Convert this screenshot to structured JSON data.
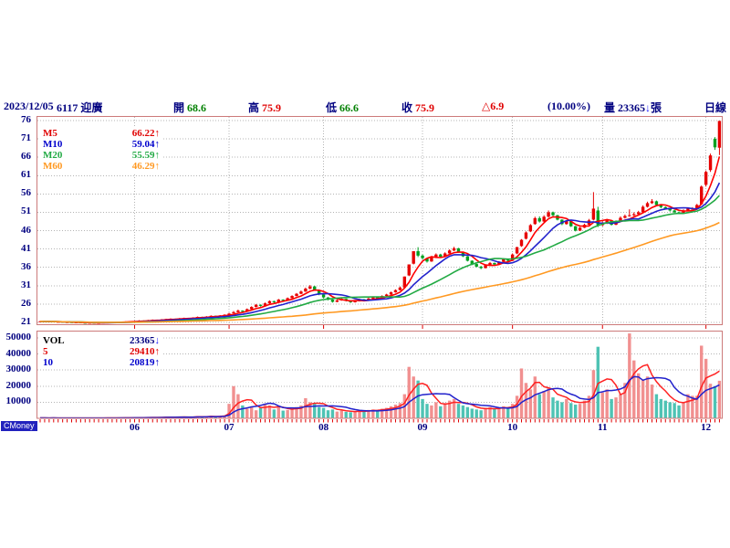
{
  "header": {
    "date": "2023/12/05",
    "stock": "6117 迎廣",
    "open_label": "開",
    "open": "68.6",
    "high_label": "高",
    "high": "75.9",
    "low_label": "低",
    "low": "66.6",
    "close_label": "收",
    "close": "75.9",
    "change": "△6.9",
    "change_pct": "(10.00%)",
    "volume_label": "量",
    "volume": "23365",
    "volume_arrow": "↓",
    "volume_unit": "張",
    "period": "日線"
  },
  "price_panel": {
    "y_ticks": [
      76,
      71,
      66,
      61,
      56,
      51,
      46,
      41,
      36,
      31,
      26,
      21
    ],
    "ma_legend": [
      {
        "label": "M5",
        "value": "66.22",
        "dir": "↑",
        "label_color": "#e00000",
        "value_color": "#e00000",
        "dir_color": "#e00000"
      },
      {
        "label": "M10",
        "value": "59.04",
        "dir": "↑",
        "label_color": "#0000cc",
        "value_color": "#0000cc",
        "dir_color": "#0000cc"
      },
      {
        "label": "M20",
        "value": "55.59",
        "dir": "↑",
        "label_color": "#22aa44",
        "value_color": "#22aa44",
        "dir_color": "#22aa44"
      },
      {
        "label": "M60",
        "value": "46.29",
        "dir": "↑",
        "label_color": "#ff9922",
        "value_color": "#ff9922",
        "dir_color": "#ff9922"
      }
    ]
  },
  "volume_panel": {
    "y_ticks": [
      "50000",
      "40000",
      "30000",
      "20000",
      "10000"
    ],
    "legend": [
      {
        "label": "VOL",
        "value": "23365",
        "dir": "↓",
        "label_color": "#000000",
        "value_color": "#000080",
        "dir_color": "#1a1aff"
      },
      {
        "label": "5",
        "value": "29410",
        "dir": "↑",
        "label_color": "#e00000",
        "value_color": "#e00000",
        "dir_color": "#e00000"
      },
      {
        "label": "10",
        "value": "20819",
        "dir": "↑",
        "label_color": "#0000cc",
        "value_color": "#0000cc",
        "dir_color": "#0000cc"
      }
    ]
  },
  "x_axis": {
    "months": [
      {
        "label": "06",
        "index": 21
      },
      {
        "label": "07",
        "index": 42
      },
      {
        "label": "08",
        "index": 63
      },
      {
        "label": "09",
        "index": 85
      },
      {
        "label": "10",
        "index": 105
      },
      {
        "label": "11",
        "index": 125
      },
      {
        "label": "12",
        "index": 148
      }
    ]
  },
  "watermark": "CMoney",
  "chart_data": {
    "type": "candlestick+volume",
    "title": "6117 迎廣 日線",
    "price_ylim": [
      21,
      76
    ],
    "volume_ylim": [
      0,
      50000
    ],
    "grid_color": "#b4b4b4",
    "border_color": "#cc7a7a",
    "up_color": "#e60000",
    "down_color": "#00a020",
    "vol_up_color": "#f19090",
    "vol_down_color": "#4ec3b4",
    "tick_color": "#e00000",
    "price_ma": [
      {
        "period": 5,
        "color": "#ff0000"
      },
      {
        "period": 10,
        "color": "#2222cc"
      },
      {
        "period": 20,
        "color": "#22aa44"
      },
      {
        "period": 60,
        "color": "#ff9922"
      }
    ],
    "volume_ma": [
      {
        "period": 5,
        "color": "#ff2222"
      },
      {
        "period": 10,
        "color": "#2222cc"
      }
    ],
    "columns": [
      "open",
      "high",
      "low",
      "close",
      "volume"
    ],
    "days": [
      [
        21.25,
        21.4,
        21.2,
        21.3,
        300
      ],
      [
        21.3,
        21.35,
        21.15,
        21.2,
        250
      ],
      [
        21.2,
        21.3,
        21.15,
        21.25,
        200
      ],
      [
        21.25,
        21.3,
        21.05,
        21.1,
        280
      ],
      [
        21.1,
        21.2,
        21.05,
        21.15,
        180
      ],
      [
        21.15,
        21.2,
        20.95,
        21.0,
        320
      ],
      [
        21.0,
        21.1,
        20.95,
        21.05,
        150
      ],
      [
        21.05,
        21.1,
        20.9,
        20.95,
        260
      ],
      [
        20.95,
        21.05,
        20.9,
        21.0,
        190
      ],
      [
        21.0,
        21.05,
        20.85,
        20.9,
        240
      ],
      [
        20.9,
        20.95,
        20.8,
        20.85,
        210
      ],
      [
        20.85,
        20.95,
        20.8,
        20.9,
        230
      ],
      [
        20.9,
        20.95,
        20.75,
        20.8,
        270
      ],
      [
        20.8,
        20.9,
        20.75,
        20.85,
        200
      ],
      [
        20.85,
        21.0,
        20.8,
        20.95,
        310
      ],
      [
        20.95,
        21.05,
        20.9,
        21.0,
        280
      ],
      [
        21.0,
        21.15,
        20.95,
        21.1,
        350
      ],
      [
        21.1,
        21.15,
        21.0,
        21.05,
        220
      ],
      [
        21.05,
        21.2,
        21.0,
        21.15,
        330
      ],
      [
        21.15,
        21.3,
        21.1,
        21.2,
        400
      ],
      [
        21.2,
        21.35,
        21.15,
        21.3,
        380
      ],
      [
        21.3,
        21.45,
        21.25,
        21.35,
        420
      ],
      [
        21.35,
        21.6,
        21.3,
        21.5,
        600
      ],
      [
        21.5,
        21.55,
        21.35,
        21.4,
        380
      ],
      [
        21.4,
        21.7,
        21.35,
        21.6,
        700
      ],
      [
        21.6,
        21.8,
        21.55,
        21.7,
        650
      ],
      [
        21.7,
        21.75,
        21.6,
        21.65,
        400
      ],
      [
        21.65,
        21.9,
        21.6,
        21.8,
        750
      ],
      [
        21.8,
        22.0,
        21.75,
        21.9,
        800
      ],
      [
        21.9,
        22.1,
        21.85,
        22.0,
        900
      ],
      [
        22.0,
        22.05,
        21.8,
        21.9,
        500
      ],
      [
        21.9,
        22.2,
        21.85,
        22.1,
        950
      ],
      [
        22.1,
        22.3,
        22.05,
        22.2,
        1000
      ],
      [
        22.2,
        22.25,
        22.05,
        22.15,
        550
      ],
      [
        22.15,
        22.4,
        22.1,
        22.3,
        1100
      ],
      [
        22.3,
        22.6,
        22.25,
        22.5,
        1400
      ],
      [
        22.5,
        22.55,
        22.3,
        22.4,
        700
      ],
      [
        22.4,
        22.7,
        22.35,
        22.6,
        1300
      ],
      [
        22.6,
        22.9,
        22.55,
        22.8,
        1600
      ],
      [
        22.8,
        22.85,
        22.6,
        22.7,
        800
      ],
      [
        22.7,
        23.0,
        22.65,
        22.9,
        1500
      ],
      [
        22.9,
        23.2,
        22.85,
        23.1,
        1800
      ],
      [
        23.1,
        23.6,
        23.0,
        23.4,
        9000
      ],
      [
        23.5,
        24.1,
        23.4,
        23.8,
        20000
      ],
      [
        23.8,
        24.5,
        23.7,
        24.2,
        15000
      ],
      [
        24.2,
        24.3,
        23.8,
        24.0,
        8000
      ],
      [
        24.0,
        24.8,
        23.9,
        24.6,
        6000
      ],
      [
        24.6,
        25.4,
        24.5,
        25.2,
        7500
      ],
      [
        25.2,
        26.0,
        25.1,
        25.8,
        5000
      ],
      [
        25.8,
        25.9,
        25.3,
        25.5,
        6500
      ],
      [
        25.5,
        26.4,
        25.4,
        26.2,
        9000
      ],
      [
        26.2,
        27.0,
        26.1,
        26.8,
        8000
      ],
      [
        26.8,
        26.9,
        26.3,
        26.5,
        5500
      ],
      [
        26.5,
        27.4,
        26.4,
        27.2,
        7000
      ],
      [
        27.2,
        27.3,
        26.8,
        27.0,
        4800
      ],
      [
        27.0,
        27.8,
        26.9,
        27.6,
        5200
      ],
      [
        27.6,
        28.4,
        27.5,
        28.2,
        6000
      ],
      [
        28.2,
        29.0,
        28.1,
        28.8,
        7000
      ],
      [
        28.8,
        29.7,
        28.7,
        29.4,
        8000
      ],
      [
        29.4,
        30.5,
        29.3,
        30.2,
        12500
      ],
      [
        30.2,
        31.2,
        30.0,
        30.8,
        10000
      ],
      [
        30.8,
        31.0,
        29.6,
        29.8,
        9500
      ],
      [
        29.8,
        30.0,
        28.4,
        28.6,
        7000
      ],
      [
        28.6,
        28.7,
        27.6,
        27.8,
        6500
      ],
      [
        27.8,
        27.9,
        27.0,
        27.2,
        5000
      ],
      [
        27.2,
        27.3,
        26.4,
        26.6,
        5500
      ],
      [
        26.6,
        27.2,
        26.5,
        27.0,
        4200
      ],
      [
        27.0,
        27.6,
        26.9,
        27.4,
        4800
      ],
      [
        27.4,
        27.5,
        26.7,
        26.9,
        4000
      ],
      [
        26.9,
        27.0,
        26.3,
        26.5,
        3800
      ],
      [
        26.5,
        27.0,
        26.4,
        26.8,
        4200
      ],
      [
        26.8,
        27.5,
        26.7,
        27.3,
        5000
      ],
      [
        27.3,
        27.4,
        26.8,
        27.0,
        4500
      ],
      [
        27.0,
        27.7,
        26.9,
        27.5,
        5200
      ],
      [
        27.5,
        28.1,
        27.4,
        27.9,
        5500
      ],
      [
        27.9,
        28.0,
        27.4,
        27.6,
        4800
      ],
      [
        27.6,
        28.4,
        27.5,
        28.2,
        6000
      ],
      [
        28.2,
        28.8,
        28.1,
        28.6,
        6500
      ],
      [
        28.6,
        29.4,
        28.5,
        29.2,
        7500
      ],
      [
        29.2,
        30.0,
        29.1,
        29.8,
        8500
      ],
      [
        29.8,
        30.8,
        29.7,
        30.5,
        9500
      ],
      [
        30.5,
        33.5,
        30.4,
        33.5,
        15000
      ],
      [
        33.8,
        36.8,
        33.6,
        36.8,
        32000
      ],
      [
        37.0,
        40.4,
        36.8,
        40.4,
        26000
      ],
      [
        40.4,
        41.5,
        38.8,
        39.2,
        23500
      ],
      [
        39.2,
        39.5,
        38.2,
        38.5,
        12000
      ],
      [
        38.5,
        38.6,
        37.3,
        37.6,
        9000
      ],
      [
        37.6,
        39.1,
        37.5,
        38.8,
        8000
      ],
      [
        38.8,
        39.8,
        38.6,
        39.5,
        10000
      ],
      [
        39.5,
        39.7,
        38.6,
        38.9,
        7500
      ],
      [
        38.9,
        40.1,
        38.8,
        39.8,
        9500
      ],
      [
        39.8,
        40.9,
        39.7,
        40.6,
        11000
      ],
      [
        40.6,
        41.6,
        40.4,
        41.2,
        12000
      ],
      [
        41.2,
        41.3,
        40.0,
        40.2,
        9000
      ],
      [
        40.2,
        40.3,
        38.8,
        39.0,
        8000
      ],
      [
        39.0,
        39.1,
        37.6,
        37.8,
        7000
      ],
      [
        37.8,
        37.9,
        36.6,
        36.9,
        6000
      ],
      [
        36.9,
        37.0,
        36.0,
        36.2,
        5500
      ],
      [
        36.2,
        36.4,
        35.5,
        35.8,
        5000
      ],
      [
        35.8,
        36.8,
        35.7,
        36.6,
        6500
      ],
      [
        36.6,
        37.5,
        36.5,
        37.2,
        7000
      ],
      [
        37.2,
        37.3,
        36.6,
        36.8,
        5800
      ],
      [
        36.8,
        37.7,
        36.7,
        37.5,
        6200
      ],
      [
        37.5,
        38.5,
        37.4,
        38.2,
        7500
      ],
      [
        38.2,
        38.3,
        37.5,
        37.8,
        6800
      ],
      [
        37.8,
        39.8,
        37.7,
        39.5,
        9000
      ],
      [
        39.8,
        41.6,
        39.6,
        41.5,
        14000
      ],
      [
        41.8,
        43.7,
        41.6,
        43.5,
        31000
      ],
      [
        43.8,
        45.8,
        43.6,
        45.5,
        22000
      ],
      [
        45.8,
        47.8,
        45.6,
        47.5,
        18000
      ],
      [
        47.8,
        49.8,
        47.6,
        49.4,
        26000
      ],
      [
        49.4,
        49.9,
        48.2,
        48.5,
        15000
      ],
      [
        48.5,
        50.2,
        48.3,
        49.8,
        17000
      ],
      [
        49.8,
        51.5,
        49.6,
        51.0,
        19000
      ],
      [
        51.0,
        51.2,
        49.9,
        50.2,
        13000
      ],
      [
        50.2,
        50.3,
        48.8,
        49.0,
        11000
      ],
      [
        49.0,
        49.1,
        47.5,
        47.8,
        10000
      ],
      [
        47.8,
        48.9,
        47.6,
        48.6,
        12000
      ],
      [
        48.6,
        48.7,
        47.0,
        47.2,
        9500
      ],
      [
        47.2,
        47.3,
        45.8,
        46.0,
        8500
      ],
      [
        46.0,
        47.0,
        45.9,
        46.8,
        9000
      ],
      [
        46.8,
        47.9,
        46.7,
        47.6,
        11000
      ],
      [
        47.6,
        49.2,
        47.5,
        48.8,
        14000
      ],
      [
        49.0,
        56.5,
        48.8,
        52.0,
        30000
      ],
      [
        51.5,
        52.5,
        47.0,
        47.5,
        44500
      ],
      [
        47.5,
        48.5,
        47.2,
        48.0,
        16000
      ],
      [
        48.0,
        49.2,
        47.8,
        48.8,
        18000
      ],
      [
        48.8,
        48.9,
        47.4,
        47.6,
        12000
      ],
      [
        47.6,
        48.8,
        47.5,
        48.5,
        13000
      ],
      [
        48.5,
        49.9,
        48.4,
        49.5,
        15000
      ],
      [
        49.5,
        50.4,
        49.3,
        50.0,
        22000
      ],
      [
        50.0,
        51.8,
        49.8,
        50.2,
        52800
      ],
      [
        50.2,
        51.0,
        50.0,
        50.5,
        36000
      ],
      [
        50.5,
        51.4,
        50.3,
        51.0,
        28000
      ],
      [
        51.0,
        52.9,
        50.9,
        52.5,
        24000
      ],
      [
        52.5,
        53.9,
        52.3,
        53.5,
        26000
      ],
      [
        53.5,
        54.6,
        53.3,
        54.0,
        21000
      ],
      [
        54.0,
        54.2,
        52.8,
        53.0,
        15000
      ],
      [
        53.0,
        53.1,
        52.1,
        52.4,
        12000
      ],
      [
        52.4,
        52.6,
        51.8,
        52.0,
        11000
      ],
      [
        52.0,
        52.2,
        51.2,
        51.5,
        10000
      ],
      [
        51.5,
        51.7,
        50.8,
        51.0,
        9500
      ],
      [
        51.0,
        51.2,
        50.5,
        50.8,
        8000
      ],
      [
        50.8,
        51.8,
        50.7,
        51.5,
        10140
      ],
      [
        51.5,
        52.3,
        51.4,
        52.0,
        15000
      ],
      [
        51.9,
        52.4,
        51.7,
        52.0,
        14000
      ],
      [
        52.0,
        53.3,
        51.9,
        53.0,
        14000
      ],
      [
        53.2,
        58.3,
        53.0,
        58.0,
        45200
      ],
      [
        58.5,
        62.4,
        58.0,
        62.0,
        37000
      ],
      [
        62.5,
        67.0,
        62.0,
        66.5,
        21485
      ],
      [
        71.0,
        71.5,
        68.0,
        68.7,
        20000
      ],
      [
        68.6,
        75.9,
        66.6,
        75.9,
        23365
      ]
    ]
  }
}
